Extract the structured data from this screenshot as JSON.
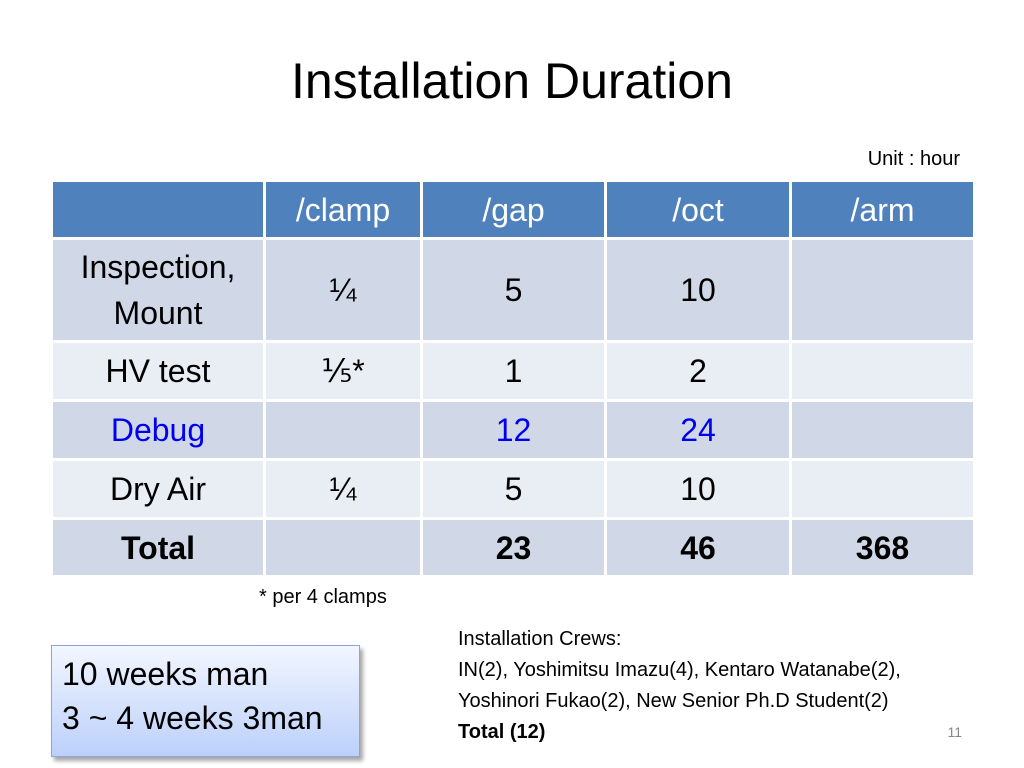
{
  "slide": {
    "title": "Installation Duration",
    "unit_note": "Unit : hour",
    "footnote": "* per 4 clamps",
    "number": "11"
  },
  "table": {
    "headers": [
      "",
      "/clamp",
      "/gap",
      "/oct",
      "/arm"
    ],
    "rows": [
      {
        "cells": [
          "Inspection,\nMount",
          "¼",
          "5",
          "10",
          ""
        ]
      },
      {
        "cells": [
          "HV test",
          "⅕*",
          "1",
          "2",
          ""
        ]
      },
      {
        "cells": [
          "Debug",
          "",
          "12",
          "24",
          ""
        ],
        "color": "#0000ee"
      },
      {
        "cells": [
          "Dry Air",
          "¼",
          "5",
          "10",
          ""
        ]
      },
      {
        "cells": [
          "Total",
          "",
          "23",
          "46",
          "368"
        ],
        "bold": true
      }
    ],
    "colors": {
      "header": "#4f81bd",
      "row_dark": "#d0d8e8",
      "row_light": "#e9edf4"
    }
  },
  "crews": {
    "heading": "Installation Crews:",
    "line1": "IN(2), Yoshimitsu Imazu(4), Kentaro Watanabe(2),",
    "line2": "Yoshinori Fukao(2), New Senior Ph.D Student(2)",
    "total": "Total (12)"
  },
  "summary": {
    "line1": "10 weeks man",
    "line2": "3 ~ 4 weeks 3man"
  }
}
